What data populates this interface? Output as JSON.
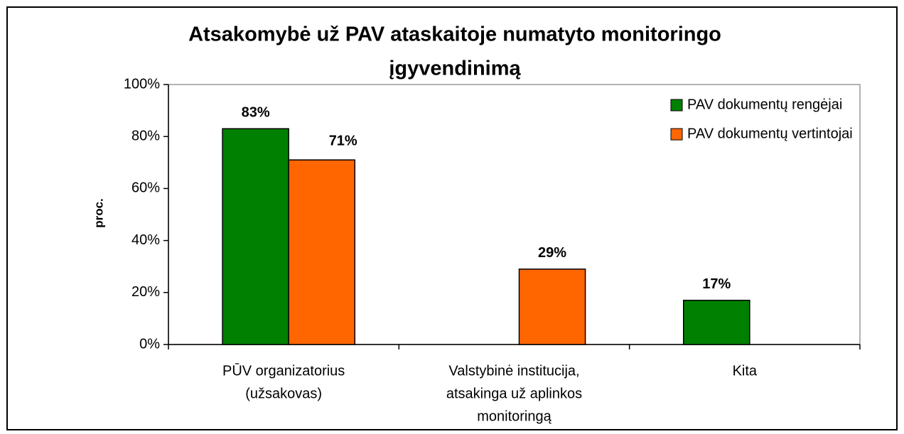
{
  "chart_data": {
    "type": "bar",
    "title": [
      "Atsakomybė už PAV ataskaitoje numatyto monitoringo",
      "įgyvendinimą"
    ],
    "y_label": "proc.",
    "categories": [
      [
        "PŪV organizatorius",
        "(užsakovas)"
      ],
      [
        "Valstybinė institucija,",
        "atsakinga už aplinkos",
        "monitoringą"
      ],
      [
        "Kita"
      ]
    ],
    "series": [
      {
        "name": "PAV dokumentų rengėjai",
        "color": "#008000",
        "values": [
          83,
          null,
          17
        ],
        "value_labels": [
          "83%",
          null,
          "17%"
        ]
      },
      {
        "name": "PAV dokumentų vertintojai",
        "color": "#ff6600",
        "values": [
          71,
          29,
          null
        ],
        "value_labels": [
          "71%",
          "29%",
          null
        ]
      }
    ],
    "ylim": [
      0,
      100
    ],
    "yticks": [
      {
        "value": 0,
        "label": "0%"
      },
      {
        "value": 20,
        "label": "20%"
      },
      {
        "value": 40,
        "label": "40%"
      },
      {
        "value": 60,
        "label": "60%"
      },
      {
        "value": 80,
        "label": "80%"
      },
      {
        "value": 100,
        "label": "100%"
      }
    ],
    "legend": "top-right"
  }
}
